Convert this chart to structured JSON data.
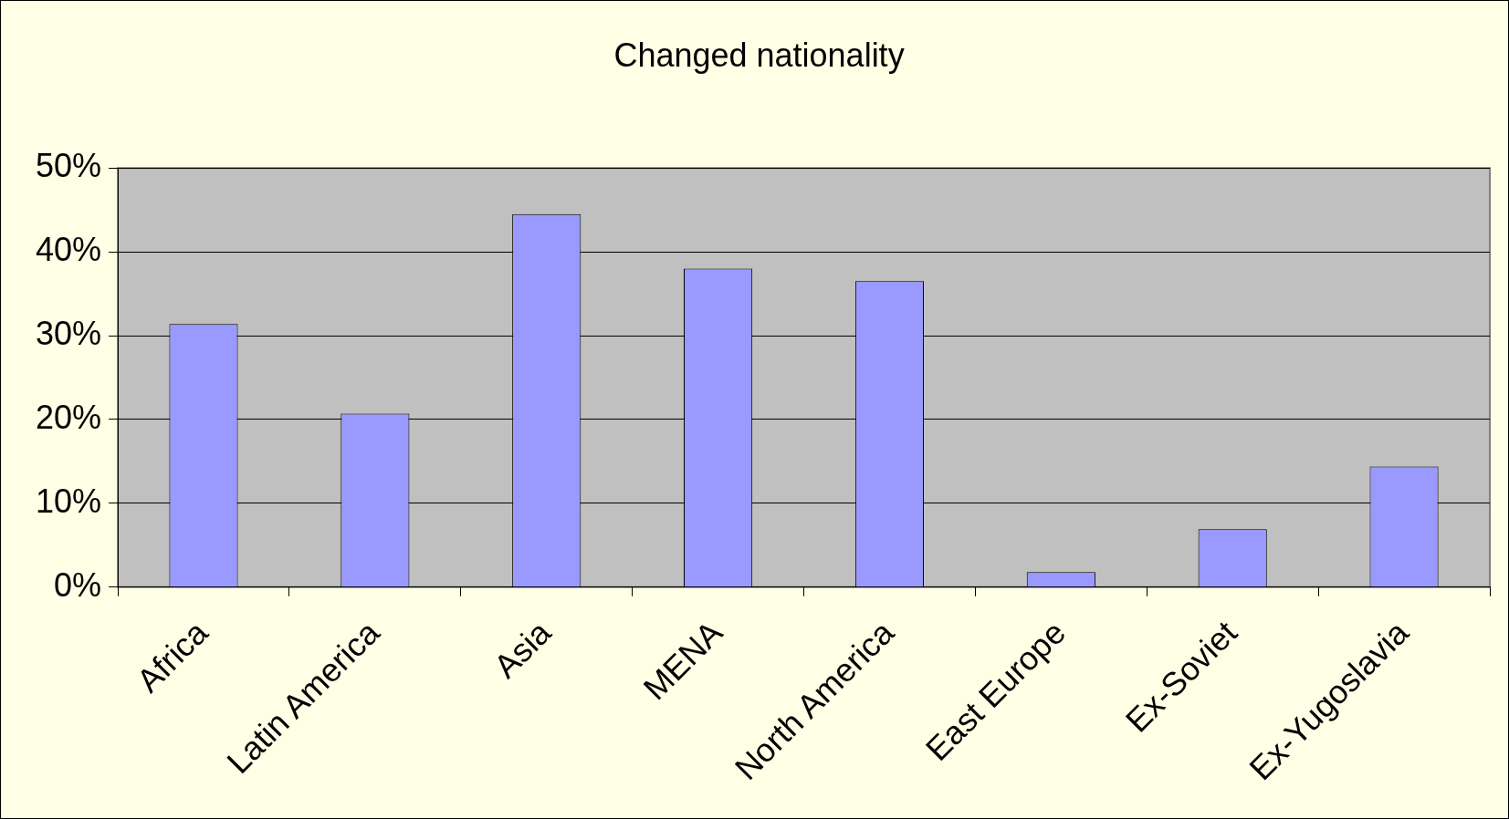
{
  "chart_data": {
    "type": "bar",
    "title": "Changed nationality",
    "categories": [
      "Africa",
      "Latin America",
      "Asia",
      "MENA",
      "North America",
      "East Europe",
      "Ex-Soviet",
      "Ex-Yugoslavia"
    ],
    "values": [
      31.4,
      20.7,
      44.5,
      38.0,
      36.5,
      1.8,
      6.9,
      14.4
    ],
    "color": "#9999ff",
    "ylim": [
      0,
      50
    ],
    "yticks": [
      {
        "value": 0,
        "label": "0%"
      },
      {
        "value": 10,
        "label": "10%"
      },
      {
        "value": 20,
        "label": "20%"
      },
      {
        "value": 30,
        "label": "30%"
      },
      {
        "value": 40,
        "label": "40%"
      },
      {
        "value": 50,
        "label": "50%"
      }
    ],
    "grid": "y",
    "legend": false
  }
}
